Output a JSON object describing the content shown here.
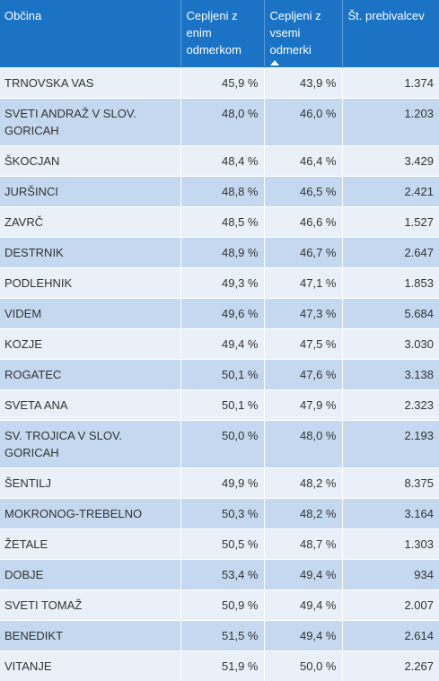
{
  "headers": {
    "obcina": "Občina",
    "cepljeni_enim": "Cepljeni z enim odmerkom",
    "cepljeni_vsemi": "Cepljeni z vsemi odmerki",
    "prebivalci": "Št. prebivalcev"
  },
  "sort_indicator": "sort-ascending-icon",
  "colors": {
    "header_bg": "#1a73c4",
    "row_light": "#e9f0f8",
    "row_dark": "#c4d9ef"
  },
  "rows": [
    {
      "obcina": "TRNOVSKA VAS",
      "enim": "45,9 %",
      "vsemi": "43,9 %",
      "prebivalci": "1.374"
    },
    {
      "obcina": "SVETI ANDRAŽ V SLOV. GORICAH",
      "enim": "48,0 %",
      "vsemi": "46,0 %",
      "prebivalci": "1.203"
    },
    {
      "obcina": "ŠKOCJAN",
      "enim": "48,4 %",
      "vsemi": "46,4 %",
      "prebivalci": "3.429"
    },
    {
      "obcina": "JURŠINCI",
      "enim": "48,8 %",
      "vsemi": "46,5 %",
      "prebivalci": "2.421"
    },
    {
      "obcina": "ZAVRČ",
      "enim": "48,5 %",
      "vsemi": "46,6 %",
      "prebivalci": "1.527"
    },
    {
      "obcina": "DESTRNIK",
      "enim": "48,9 %",
      "vsemi": "46,7 %",
      "prebivalci": "2.647"
    },
    {
      "obcina": "PODLEHNIK",
      "enim": "49,3 %",
      "vsemi": "47,1 %",
      "prebivalci": "1.853"
    },
    {
      "obcina": "VIDEM",
      "enim": "49,6 %",
      "vsemi": "47,3 %",
      "prebivalci": "5.684"
    },
    {
      "obcina": "KOZJE",
      "enim": "49,4 %",
      "vsemi": "47,5 %",
      "prebivalci": "3.030"
    },
    {
      "obcina": "ROGATEC",
      "enim": "50,1 %",
      "vsemi": "47,6 %",
      "prebivalci": "3.138"
    },
    {
      "obcina": "SVETA ANA",
      "enim": "50,1 %",
      "vsemi": "47,9 %",
      "prebivalci": "2.323"
    },
    {
      "obcina": "SV. TROJICA V SLOV. GORICAH",
      "enim": "50,0 %",
      "vsemi": "48,0 %",
      "prebivalci": "2.193"
    },
    {
      "obcina": "ŠENTILJ",
      "enim": "49,9 %",
      "vsemi": "48,2 %",
      "prebivalci": "8.375"
    },
    {
      "obcina": "MOKRONOG-TREBELNO",
      "enim": "50,3 %",
      "vsemi": "48,2 %",
      "prebivalci": "3.164"
    },
    {
      "obcina": "ŽETALE",
      "enim": "50,5 %",
      "vsemi": "48,7 %",
      "prebivalci": "1.303"
    },
    {
      "obcina": "DOBJE",
      "enim": "53,4 %",
      "vsemi": "49,4 %",
      "prebivalci": "934"
    },
    {
      "obcina": "SVETI TOMAŽ",
      "enim": "50,9 %",
      "vsemi": "49,4 %",
      "prebivalci": "2.007"
    },
    {
      "obcina": "BENEDIKT",
      "enim": "51,5 %",
      "vsemi": "49,4 %",
      "prebivalci": "2.614"
    },
    {
      "obcina": "VITANJE",
      "enim": "51,9 %",
      "vsemi": "50,0 %",
      "prebivalci": "2.267"
    }
  ]
}
